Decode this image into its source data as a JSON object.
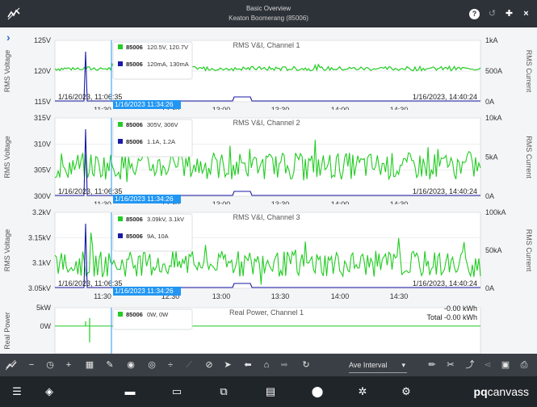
{
  "titlebar": {
    "title": "Basic Overview",
    "subtitle": "Keaton Boomerang (85006)",
    "icons": [
      "app-logo-icon",
      "help-icon",
      "history-icon",
      "pin-icon",
      "close-icon"
    ]
  },
  "charts": [
    {
      "title": "RMS V&I, Channel 1",
      "left_axis_label": "RMS Voltage",
      "right_axis_label": "RMS Current",
      "left_ticks": [
        "125V",
        "120V",
        "115V"
      ],
      "left_tick_values": [
        125,
        120,
        115
      ],
      "right_ticks": [
        "1kA",
        "500A",
        "0A"
      ],
      "right_tick_values": [
        1000,
        500,
        0
      ],
      "ylim_left": [
        115,
        125
      ],
      "ylim_right": [
        0,
        1000
      ],
      "x_ticks": [
        "11:30",
        "12:30",
        "13:00",
        "13:30",
        "14:00",
        "14:30"
      ],
      "start_label": "1/16/2023, 11:06:35",
      "end_label": "1/16/2023, 14:40:24",
      "cursor_label": "1/16/2023 11:34:26",
      "legend": [
        {
          "id": "85006",
          "value": "120.5V, 120.7V",
          "color": "#22cc22"
        },
        {
          "id": "85006",
          "value": "120mA, 130mA",
          "color": "#1a1aa6"
        }
      ],
      "voltage_level": 120.4,
      "voltage_noise": 0.35
    },
    {
      "title": "RMS V&I, Channel 2",
      "left_axis_label": "RMS Voltage",
      "right_axis_label": "RMS Current",
      "left_ticks": [
        "315V",
        "310V",
        "305V",
        "300V"
      ],
      "left_tick_values": [
        315,
        310,
        305,
        300
      ],
      "right_ticks": [
        "10kA",
        "5kA",
        "0A"
      ],
      "right_tick_values": [
        10000,
        5000,
        0
      ],
      "ylim_left": [
        300,
        315
      ],
      "ylim_right": [
        0,
        10000
      ],
      "x_ticks": [
        "11:30",
        "12:30",
        "13:00",
        "13:30",
        "14:00",
        "14:30"
      ],
      "start_label": "1/16/2023, 11:06:35",
      "end_label": "1/16/2023, 14:40:24",
      "cursor_label": "1/16/2023 11:34:26",
      "legend": [
        {
          "id": "85006",
          "value": "305V, 306V",
          "color": "#22cc22"
        },
        {
          "id": "85006",
          "value": "1.1A, 1.2A",
          "color": "#1a1aa6"
        }
      ],
      "voltage_level": 305.8,
      "voltage_noise": 2.6
    },
    {
      "title": "RMS V&I, Channel 3",
      "left_axis_label": "RMS Voltage",
      "right_axis_label": "RMS Current",
      "left_ticks": [
        "3.2kV",
        "3.15kV",
        "3.1kV",
        "3.05kV"
      ],
      "left_tick_values": [
        3200,
        3150,
        3100,
        3050
      ],
      "right_ticks": [
        "100kA",
        "50kA",
        "0A"
      ],
      "right_tick_values": [
        100000,
        50000,
        0
      ],
      "ylim_left": [
        3050,
        3200
      ],
      "ylim_right": [
        0,
        100000
      ],
      "x_ticks": [
        "11:30",
        "12:30",
        "13:00",
        "13:30",
        "14:00",
        "14:30"
      ],
      "start_label": "1/16/2023, 11:06:35",
      "end_label": "1/16/2023, 14:40:24",
      "cursor_label": "1/16/2023 11:34:26",
      "legend": [
        {
          "id": "85006",
          "value": "3.09kV, 3.1kV",
          "color": "#22cc22"
        },
        {
          "id": "85006",
          "value": "9A, 10A",
          "color": "#1a1aa6"
        }
      ],
      "voltage_level": 3098,
      "voltage_noise": 26
    },
    {
      "title": "Real Power, Channel 1",
      "left_axis_label": "Real Power",
      "left_ticks": [
        "5kW",
        "0W"
      ],
      "left_tick_values": [
        5000,
        0
      ],
      "ylim_left": [
        -7500,
        5000
      ],
      "legend": [
        {
          "id": "85006",
          "value": "0W, 0W",
          "color": "#22cc22"
        }
      ],
      "energy_label": "-0.00 kWh",
      "energy_total_label": "Total -0.00 kWh"
    }
  ],
  "toolbar": {
    "interval_label": "Ave Interval",
    "buttons": [
      "axis-icon",
      "zoom-out-icon",
      "clock-icon",
      "zoom-in-icon",
      "table-icon",
      "ruler-icon",
      "eye-chart-icon",
      "eye-icon",
      "divide-icon",
      "line-chart-icon",
      "eye-off-icon",
      "pointer-icon",
      "arrow-left-icon",
      "home-icon",
      "arrow-right-icon",
      "refresh-icon",
      "pencil-icon",
      "scissors-icon",
      "export-icon",
      "share-icon",
      "save-icon",
      "print-icon"
    ]
  },
  "bottomnav": {
    "brand_bold": "pq",
    "brand_rest": "canvass",
    "buttons": [
      "menu-icon",
      "layers-icon",
      "device-icon",
      "tape-icon",
      "trend-icon",
      "document-icon",
      "location-icon",
      "satellite-icon",
      "settings-icon"
    ]
  },
  "colors": {
    "voltage": "#22cc22",
    "current": "#1a1aa6",
    "cursor": "#2196f3",
    "titlebar": "#2d3238",
    "toolbar": "#3a3f45",
    "bottomnav": "#20252a"
  }
}
